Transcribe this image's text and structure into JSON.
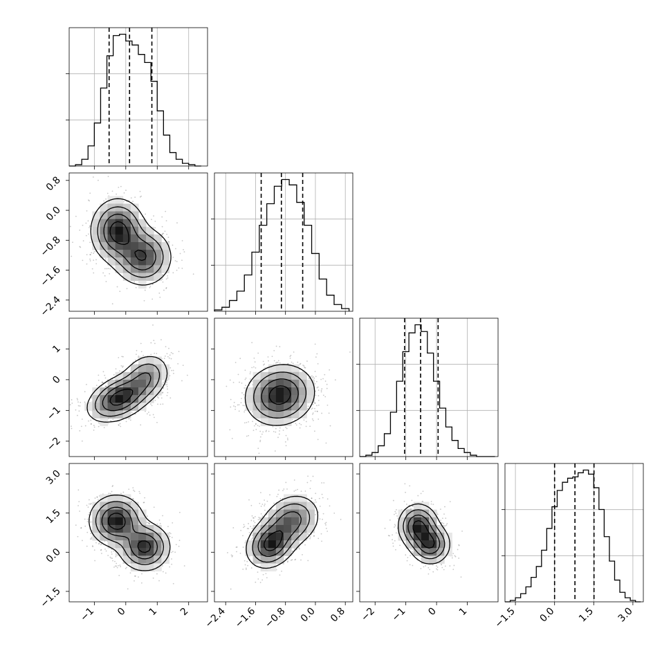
{
  "chart_data": {
    "type": "corner",
    "title": "",
    "grid": true,
    "parameters": [
      {
        "range": [
          -1.8,
          2.6
        ],
        "ticks": [
          "-1",
          "0",
          "1",
          "2"
        ],
        "quantiles": [
          -0.53,
          0.12,
          0.83
        ],
        "hist_bins": [
          -1.8,
          -1.6,
          -1.4,
          -1.2,
          -1.0,
          -0.8,
          -0.6,
          -0.4,
          -0.2,
          0.0,
          0.2,
          0.4,
          0.6,
          0.8,
          1.0,
          1.2,
          1.4,
          1.6,
          1.8,
          2.0,
          2.2,
          2.4
        ],
        "hist_counts": [
          0,
          1,
          5,
          15,
          32,
          58,
          82,
          97,
          98,
          93,
          90,
          83,
          77,
          63,
          41,
          23,
          10,
          5,
          2,
          1,
          0
        ]
      },
      {
        "range": [
          -2.7,
          1.0
        ],
        "ticks": [
          "-2.4",
          "-1.6",
          "-0.8",
          "0.0",
          "0.8"
        ],
        "quantiles": [
          -1.45,
          -0.91,
          -0.34
        ],
        "hist_bins": [
          -2.7,
          -2.5,
          -2.3,
          -2.1,
          -1.9,
          -1.7,
          -1.5,
          -1.3,
          -1.1,
          -0.9,
          -0.7,
          -0.5,
          -0.3,
          -0.1,
          0.1,
          0.3,
          0.5,
          0.7,
          0.9
        ],
        "hist_counts": [
          1,
          3,
          8,
          15,
          27,
          44,
          64,
          80,
          93,
          98,
          94,
          81,
          64,
          43,
          24,
          12,
          5,
          2
        ]
      },
      {
        "range": [
          -2.5,
          2.0
        ],
        "ticks": [
          "-2",
          "-1",
          "0",
          "1"
        ],
        "quantiles": [
          -1.04,
          -0.52,
          0.05
        ],
        "hist_bins": [
          -2.5,
          -2.3,
          -2.1,
          -1.9,
          -1.7,
          -1.5,
          -1.3,
          -1.1,
          -0.9,
          -0.7,
          -0.5,
          -0.3,
          -0.1,
          0.1,
          0.3,
          0.5,
          0.7,
          0.9,
          1.1,
          1.3,
          1.5,
          1.7,
          1.9
        ],
        "hist_counts": [
          0,
          1,
          3,
          8,
          17,
          33,
          56,
          78,
          92,
          98,
          93,
          77,
          56,
          36,
          22,
          12,
          6,
          3,
          1,
          0,
          0,
          0
        ]
      },
      {
        "range": [
          -1.9,
          3.4
        ],
        "ticks": [
          "-1.5",
          "0.0",
          "1.5",
          "3.0"
        ],
        "quantiles": [
          0.0,
          0.78,
          1.51
        ],
        "hist_bins": [
          -1.9,
          -1.7,
          -1.5,
          -1.3,
          -1.1,
          -0.9,
          -0.7,
          -0.5,
          -0.3,
          -0.1,
          0.1,
          0.3,
          0.5,
          0.7,
          0.9,
          1.1,
          1.3,
          1.5,
          1.7,
          1.9,
          2.1,
          2.3,
          2.5,
          2.7,
          2.9,
          3.1,
          3.3
        ],
        "hist_counts": [
          0,
          1,
          3,
          6,
          11,
          18,
          26,
          38,
          54,
          70,
          82,
          88,
          91,
          92,
          95,
          97,
          94,
          84,
          68,
          48,
          30,
          16,
          7,
          3,
          1,
          0
        ]
      }
    ],
    "pairs": [
      {
        "x": 0,
        "y": 1,
        "components": [
          {
            "mx": -0.25,
            "my": -0.55,
            "sx": 0.42,
            "sy": 0.42,
            "rho": 0.0,
            "w": 0.55
          },
          {
            "mx": 0.55,
            "my": -1.25,
            "sx": 0.45,
            "sy": 0.38,
            "rho": 0.0,
            "w": 0.45
          }
        ]
      },
      {
        "x": 0,
        "y": 2,
        "components": [
          {
            "mx": -0.2,
            "my": -0.6,
            "sx": 0.5,
            "sy": 0.38,
            "rho": 0.4,
            "w": 0.7
          },
          {
            "mx": 0.65,
            "my": 0.1,
            "sx": 0.38,
            "sy": 0.38,
            "rho": 0.2,
            "w": 0.3
          }
        ]
      },
      {
        "x": 1,
        "y": 2,
        "components": [
          {
            "mx": -0.95,
            "my": -0.5,
            "sx": 0.45,
            "sy": 0.48,
            "rho": 0.1,
            "w": 1.0
          }
        ]
      },
      {
        "x": 0,
        "y": 3,
        "components": [
          {
            "mx": -0.3,
            "my": 1.2,
            "sx": 0.42,
            "sy": 0.48,
            "rho": 0.0,
            "w": 0.55
          },
          {
            "mx": 0.6,
            "my": 0.2,
            "sx": 0.4,
            "sy": 0.45,
            "rho": 0.0,
            "w": 0.45
          }
        ]
      },
      {
        "x": 1,
        "y": 3,
        "components": [
          {
            "mx": -1.2,
            "my": 0.3,
            "sx": 0.32,
            "sy": 0.45,
            "rho": 0.2,
            "w": 0.5
          },
          {
            "mx": -0.65,
            "my": 1.2,
            "sx": 0.38,
            "sy": 0.5,
            "rho": 0.2,
            "w": 0.5
          }
        ]
      },
      {
        "x": 2,
        "y": 3,
        "components": [
          {
            "mx": -0.6,
            "my": 1.0,
            "sx": 0.32,
            "sy": 0.42,
            "rho": 0.0,
            "w": 0.55
          },
          {
            "mx": -0.2,
            "my": 0.3,
            "sx": 0.32,
            "sy": 0.38,
            "rho": 0.0,
            "w": 0.45
          }
        ]
      }
    ]
  }
}
